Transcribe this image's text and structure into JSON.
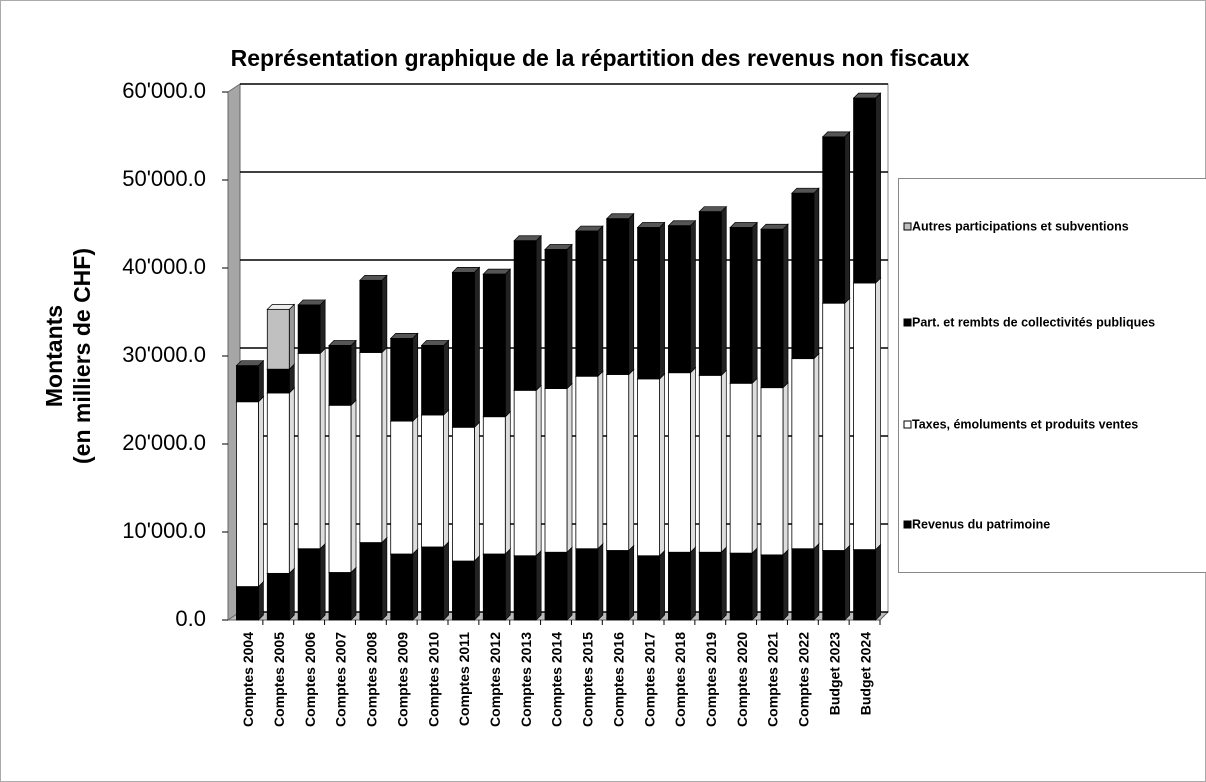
{
  "chart_data": {
    "type": "stacked_bar_3d",
    "title": "Représentation graphique de la répartition des revenus non fiscaux",
    "y_axis_label": [
      "Montants",
      "(en milliers de CHF)"
    ],
    "categories": [
      "Comptes 2004",
      "Comptes 2005",
      "Comptes 2006",
      "Comptes 2007",
      "Comptes 2008",
      "Comptes 2009",
      "Comptes 2010",
      "Comptes 2011",
      "Comptes 2012",
      "Comptes 2013",
      "Comptes 2014",
      "Comptes 2015",
      "Comptes 2016",
      "Comptes 2017",
      "Comptes 2018",
      "Comptes 2019",
      "Comptes 2020",
      "Comptes 2021",
      "Comptes 2022",
      "Budget 2023",
      "Budget 2024"
    ],
    "series": [
      {
        "name": "Revenus du patrimoine",
        "color": "#000000",
        "values": [
          3800,
          5300,
          8100,
          5400,
          8800,
          7500,
          8300,
          6700,
          7500,
          7300,
          7700,
          8100,
          7900,
          7300,
          7700,
          7700,
          7600,
          7400,
          8100,
          7900,
          8000
        ]
      },
      {
        "name": "Taxes, émoluments et produits ventes",
        "color": "#ffffff",
        "values": [
          21000,
          20500,
          22200,
          19000,
          21600,
          15100,
          15000,
          15200,
          15600,
          18800,
          18600,
          19600,
          20000,
          20100,
          20400,
          20100,
          19300,
          19000,
          21600,
          28100,
          30300
        ]
      },
      {
        "name": "Part. et rembts de collectivités publiques",
        "color": "#000000",
        "values": [
          4100,
          2700,
          5500,
          6800,
          8200,
          9400,
          7900,
          17600,
          16200,
          17000,
          15800,
          16500,
          17700,
          17200,
          16700,
          18600,
          17700,
          18000,
          18800,
          18900,
          21000
        ]
      },
      {
        "name": "Autres participations et subventions",
        "color": "#c0c0c0",
        "values": [
          0,
          6800,
          0,
          0,
          0,
          0,
          0,
          0,
          0,
          0,
          0,
          0,
          0,
          0,
          0,
          0,
          0,
          0,
          0,
          0,
          0
        ]
      }
    ],
    "ylim": [
      0,
      60000
    ],
    "yticks": [
      {
        "value": 0,
        "label": "0.0"
      },
      {
        "value": 10000,
        "label": "10'000.0"
      },
      {
        "value": 20000,
        "label": "20'000.0"
      },
      {
        "value": 30000,
        "label": "30'000.0"
      },
      {
        "value": 40000,
        "label": "40'000.0"
      },
      {
        "value": 50000,
        "label": "50'000.0"
      },
      {
        "value": 60000,
        "label": "60'000.0"
      }
    ],
    "grid": true,
    "legend": "right"
  }
}
